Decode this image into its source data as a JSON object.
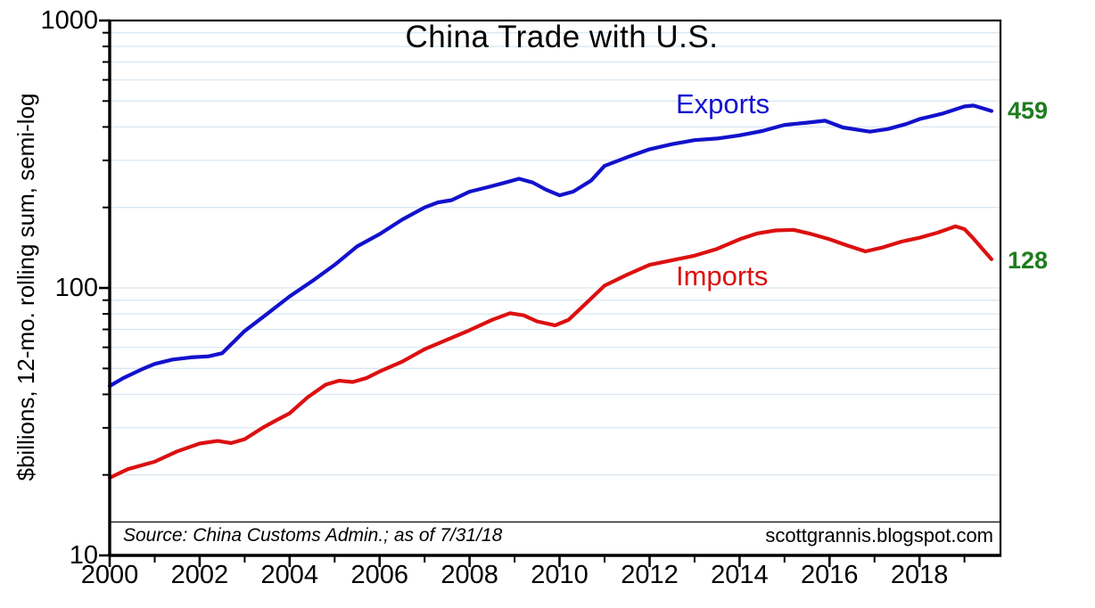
{
  "chart": {
    "title": "China Trade with U.S.",
    "ylabel": "$billions, 12-mo. rolling sum, semi-log",
    "source_note": "Source: China Customs Admin.; as of 7/31/18",
    "credit": "scottgrannis.blogspot.com",
    "legend": {
      "exports_label": "Exports",
      "imports_label": "Imports"
    },
    "end_labels": {
      "exports_value": "459",
      "imports_value": "128"
    },
    "colors": {
      "exports_line": "#1212cc",
      "imports_line": "#dc1010",
      "end_label_green": "#1e7d1e",
      "gridline_blue": "#d9e7f2",
      "axis_black": "#000000"
    }
  },
  "chart_data": {
    "type": "line",
    "title": "China Trade with U.S.",
    "xlabel": "",
    "ylabel": "$billions, 12-mo. rolling sum, semi-log",
    "grid": "horizontal log minor gridlines, light blue",
    "legend_position": "inline labels next to lines",
    "annotations": {
      "right_edge_values": {
        "Exports": 459,
        "Imports": 128
      },
      "source": "Source: China Customs Admin.; as of 7/31/18",
      "watermark": "scottgrannis.blogspot.com"
    },
    "x_axis": {
      "range": [
        2000,
        2019.8
      ],
      "labeled_years": [
        2000,
        2002,
        2004,
        2006,
        2008,
        2010,
        2012,
        2014,
        2016,
        2018
      ],
      "tick_labels": [
        "2000",
        "2002",
        "2004",
        "2006",
        "2008",
        "2010",
        "2012",
        "2014",
        "2016",
        "2018"
      ],
      "minor_tick_every_years": 1
    },
    "y_axis": {
      "scale": "log",
      "range": [
        10,
        1000
      ],
      "major_ticks": [
        10,
        100,
        1000
      ],
      "tick_labels": [
        "1000",
        "100",
        "10"
      ],
      "minor_gridline_values": [
        20,
        30,
        40,
        50,
        60,
        70,
        80,
        90,
        100,
        200,
        300,
        400,
        500,
        600,
        700,
        800,
        900
      ]
    },
    "series": [
      {
        "name": "Exports",
        "color": "#1212cc",
        "end_value": 459,
        "points": [
          [
            2000.0,
            43
          ],
          [
            2000.3,
            46
          ],
          [
            2000.7,
            49.5
          ],
          [
            2001.0,
            52
          ],
          [
            2001.4,
            54
          ],
          [
            2001.8,
            55
          ],
          [
            2002.2,
            55.5
          ],
          [
            2002.5,
            57
          ],
          [
            2003.0,
            69
          ],
          [
            2003.5,
            80
          ],
          [
            2004.0,
            93
          ],
          [
            2004.5,
            106
          ],
          [
            2005.0,
            122
          ],
          [
            2005.5,
            143
          ],
          [
            2006.0,
            159
          ],
          [
            2006.5,
            180
          ],
          [
            2007.0,
            200
          ],
          [
            2007.3,
            209
          ],
          [
            2007.6,
            213
          ],
          [
            2008.0,
            229
          ],
          [
            2008.4,
            238
          ],
          [
            2008.8,
            248
          ],
          [
            2009.1,
            256
          ],
          [
            2009.4,
            248
          ],
          [
            2009.7,
            233
          ],
          [
            2010.0,
            222
          ],
          [
            2010.3,
            229
          ],
          [
            2010.7,
            252
          ],
          [
            2011.0,
            286
          ],
          [
            2011.5,
            308
          ],
          [
            2012.0,
            330
          ],
          [
            2012.5,
            345
          ],
          [
            2013.0,
            357
          ],
          [
            2013.5,
            362
          ],
          [
            2014.0,
            372
          ],
          [
            2014.5,
            386
          ],
          [
            2015.0,
            407
          ],
          [
            2015.5,
            415
          ],
          [
            2015.9,
            422
          ],
          [
            2016.3,
            398
          ],
          [
            2016.9,
            384
          ],
          [
            2017.3,
            393
          ],
          [
            2017.7,
            410
          ],
          [
            2018.0,
            428
          ],
          [
            2018.5,
            448
          ],
          [
            2019.0,
            477
          ],
          [
            2019.2,
            481
          ],
          [
            2019.4,
            470
          ],
          [
            2019.6,
            459
          ]
        ]
      },
      {
        "name": "Imports",
        "color": "#dc1010",
        "end_value": 128,
        "points": [
          [
            2000.0,
            19.5
          ],
          [
            2000.4,
            21
          ],
          [
            2001.0,
            22.4
          ],
          [
            2001.5,
            24.5
          ],
          [
            2002.0,
            26.2
          ],
          [
            2002.4,
            26.8
          ],
          [
            2002.7,
            26.3
          ],
          [
            2003.0,
            27.2
          ],
          [
            2003.4,
            30
          ],
          [
            2003.7,
            32
          ],
          [
            2004.0,
            34
          ],
          [
            2004.4,
            39
          ],
          [
            2004.8,
            43.5
          ],
          [
            2005.1,
            45
          ],
          [
            2005.4,
            44.5
          ],
          [
            2005.7,
            46
          ],
          [
            2006.0,
            48.7
          ],
          [
            2006.5,
            53
          ],
          [
            2007.0,
            59
          ],
          [
            2007.5,
            64
          ],
          [
            2008.0,
            69.5
          ],
          [
            2008.5,
            76
          ],
          [
            2008.9,
            80.5
          ],
          [
            2009.2,
            79
          ],
          [
            2009.5,
            75
          ],
          [
            2009.9,
            72.5
          ],
          [
            2010.2,
            76
          ],
          [
            2010.6,
            88
          ],
          [
            2011.0,
            102
          ],
          [
            2011.5,
            112
          ],
          [
            2012.0,
            122
          ],
          [
            2012.5,
            127
          ],
          [
            2013.0,
            132
          ],
          [
            2013.5,
            140
          ],
          [
            2014.0,
            152
          ],
          [
            2014.4,
            160
          ],
          [
            2014.8,
            164
          ],
          [
            2015.2,
            165
          ],
          [
            2015.6,
            159
          ],
          [
            2016.0,
            152
          ],
          [
            2016.4,
            144
          ],
          [
            2016.8,
            137
          ],
          [
            2017.2,
            142
          ],
          [
            2017.6,
            149
          ],
          [
            2018.0,
            154
          ],
          [
            2018.4,
            161
          ],
          [
            2018.8,
            170
          ],
          [
            2019.0,
            166
          ],
          [
            2019.2,
            153
          ],
          [
            2019.4,
            140
          ],
          [
            2019.6,
            128
          ]
        ]
      }
    ]
  }
}
